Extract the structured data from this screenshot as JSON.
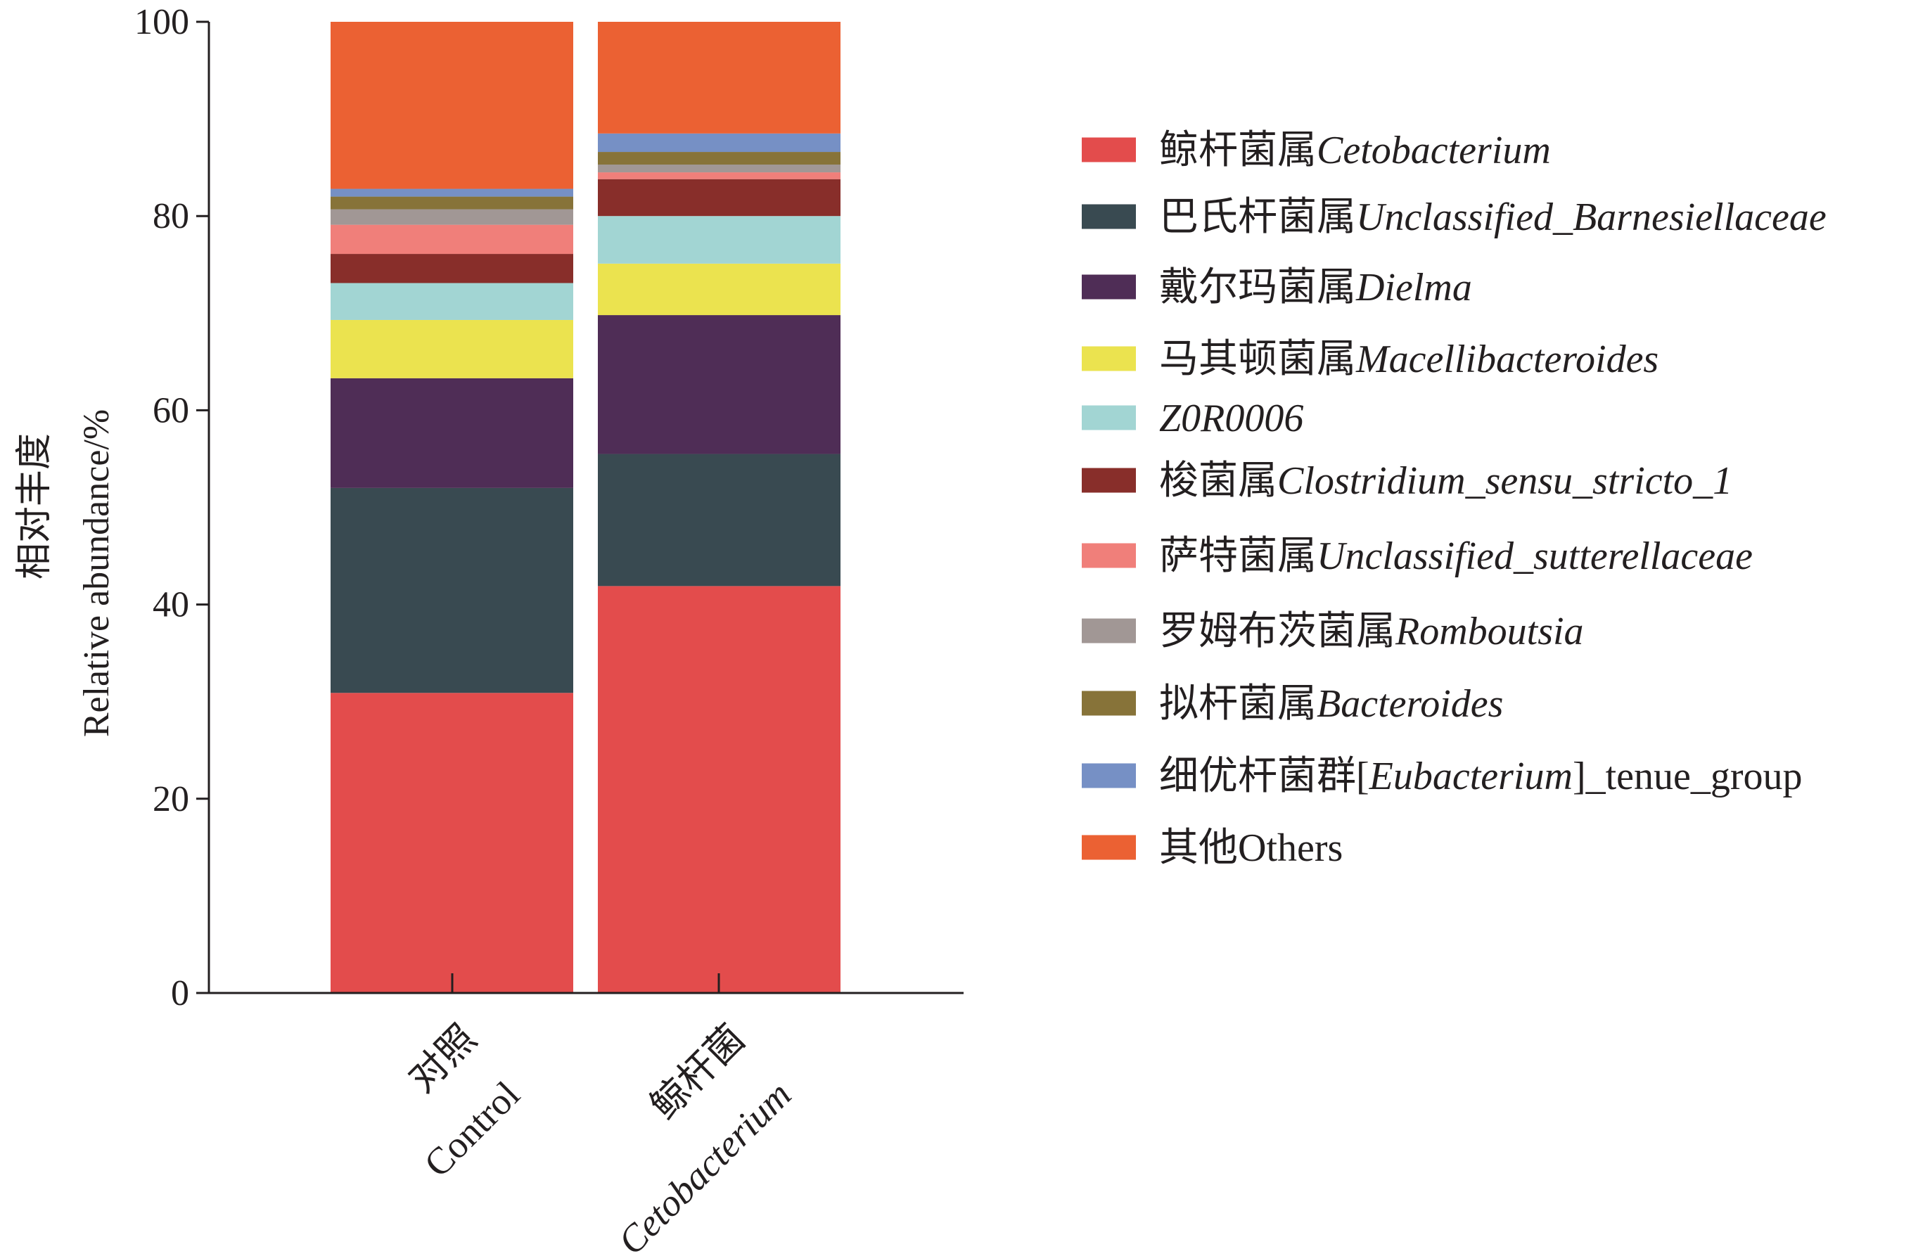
{
  "chart_data": {
    "type": "bar",
    "stacked": true,
    "ylabel_lines": [
      "相对丰度",
      "Relative abundance/%"
    ],
    "ylim": [
      0,
      100
    ],
    "yticks": [
      "0",
      "20",
      "40",
      "60",
      "80",
      "100"
    ],
    "categories": [
      {
        "cn": "对照",
        "en": "Control",
        "en_italic": false
      },
      {
        "cn": "鲸杆菌",
        "en": "Cetobacterium",
        "en_italic": true
      }
    ],
    "series": [
      {
        "name_cn": "鲸杆菌属",
        "name_sci": "Cetobacterium",
        "color": "#e34c4c",
        "values": [
          30.9,
          41.9
        ]
      },
      {
        "name_cn": "巴氏杆菌属",
        "name_sci": "Unclassified_Barnesiellaceae",
        "color": "#394a51",
        "values": [
          21.1,
          13.6
        ]
      },
      {
        "name_cn": "戴尔玛菌属",
        "name_sci": "Dielma",
        "color": "#4f2d56",
        "values": [
          11.3,
          14.3
        ]
      },
      {
        "name_cn": "马其顿菌属",
        "name_sci": "Macellibacteroides",
        "color": "#ebe34f",
        "values": [
          6.0,
          5.3
        ]
      },
      {
        "name_cn": "",
        "name_sci": "Z0R0006",
        "color": "#a2d5d3",
        "values": [
          3.8,
          4.9
        ]
      },
      {
        "name_cn": "梭菌属",
        "name_sci": "Clostridium_sensu_stricto_1",
        "color": "#882e2a",
        "values": [
          3.0,
          3.8
        ]
      },
      {
        "name_cn": "萨特菌属",
        "name_sci": "Unclassified_sutterellaceae",
        "color": "#f07f7a",
        "values": [
          3.0,
          0.7
        ]
      },
      {
        "name_cn": "罗姆布茨菌属",
        "name_sci": "Romboutsia",
        "color": "#a19795",
        "values": [
          1.6,
          0.8
        ]
      },
      {
        "name_cn": "拟杆菌属",
        "name_sci": "Bacteroides",
        "color": "#877339",
        "values": [
          1.3,
          1.3
        ]
      },
      {
        "name_cn": "细优杆菌群",
        "name_sci": "[Eubacterium]_tenue_group",
        "sci_display": {
          "pre": "[",
          "it": "Eubacterium",
          "post": "]_tenue_group"
        },
        "color": "#7690c5",
        "values": [
          0.8,
          1.9
        ]
      },
      {
        "name_cn": "其他",
        "name_sci": "Others",
        "sci_italic": false,
        "color": "#eb6133",
        "values": [
          17.2,
          11.5
        ]
      }
    ]
  }
}
